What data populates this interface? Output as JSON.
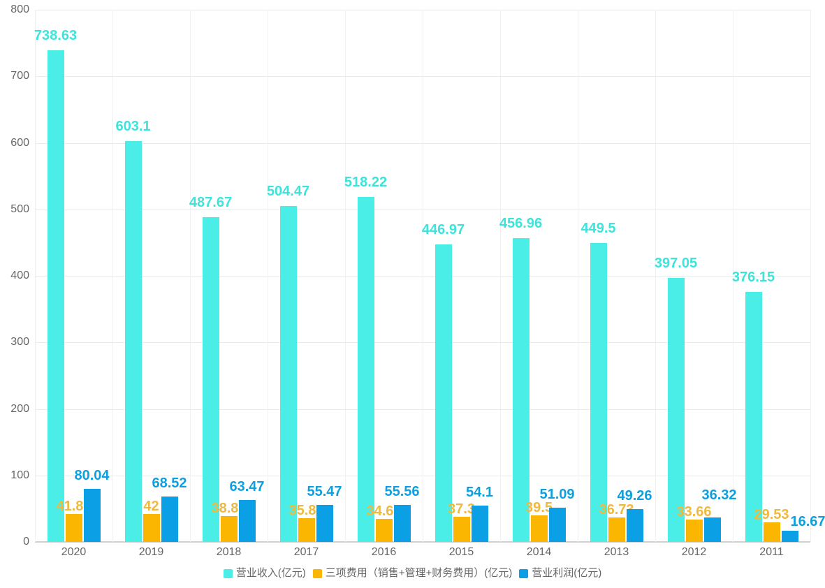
{
  "chart_data": {
    "type": "bar",
    "title": "",
    "categories": [
      "2020",
      "2019",
      "2018",
      "2017",
      "2016",
      "2015",
      "2014",
      "2013",
      "2012",
      "2011"
    ],
    "series": [
      {
        "key": "revenue",
        "name": "营业收入(亿元)",
        "color": "#4BEEE7",
        "label_color": "#3CE4DC",
        "values": [
          738.63,
          603.1,
          487.67,
          504.47,
          518.22,
          446.97,
          456.96,
          449.5,
          397.05,
          376.15
        ]
      },
      {
        "key": "three-expenses",
        "name": "三项费用（销售+管理+财务费用）(亿元)",
        "color": "#FBB601",
        "label_color": "#F0B83C",
        "values": [
          41.81,
          42,
          38.89,
          35.86,
          34.61,
          37.3,
          39.5,
          36.73,
          33.66,
          29.53
        ]
      },
      {
        "key": "operating-profit",
        "name": "营业利润(亿元)",
        "color": "#0B9FE5",
        "label_color": "#0E9FDE",
        "values": [
          80.04,
          68.52,
          63.47,
          55.47,
          55.56,
          54.1,
          51.09,
          49.26,
          36.32,
          16.67
        ]
      }
    ],
    "y_axis": {
      "min": 0,
      "max": 800,
      "tick_interval": 100,
      "tick_labels": [
        "0",
        "100",
        "200",
        "300",
        "400",
        "500",
        "600",
        "700",
        "800"
      ]
    },
    "x_axis": {
      "tick_labels": [
        "2020",
        "2019",
        "2018",
        "2017",
        "2016",
        "2015",
        "2014",
        "2013",
        "2012",
        "2011"
      ]
    },
    "grid": true,
    "legend_position": "bottom",
    "background_color": "#ffffff",
    "text_color": "#666666"
  }
}
